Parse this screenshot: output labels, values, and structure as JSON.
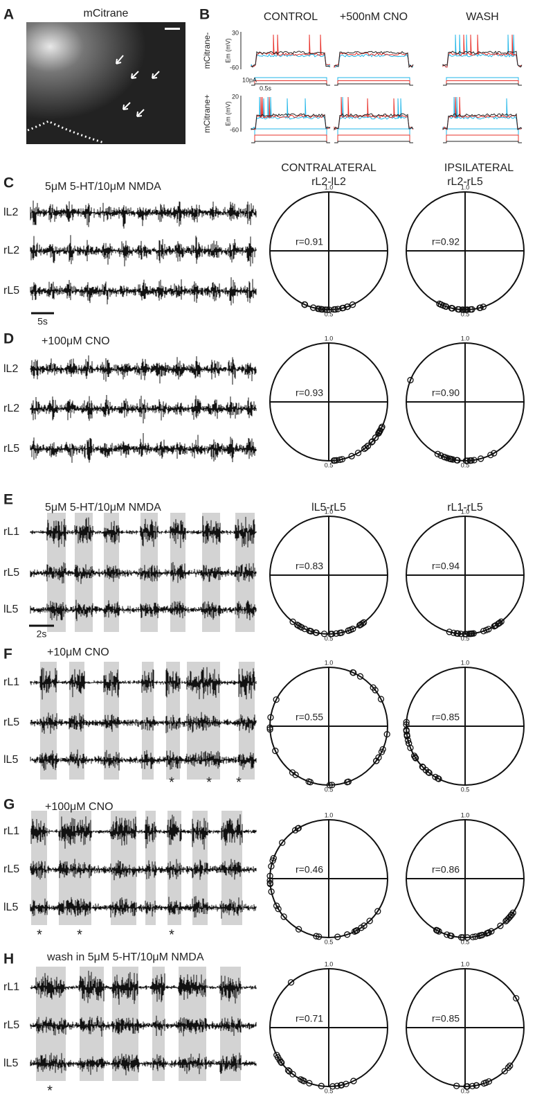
{
  "panel_a": {
    "letter": "A",
    "title": "mCitrane"
  },
  "panel_b": {
    "letter": "B",
    "conditions": [
      "CONTROL",
      "+500nM CNO",
      "WASH"
    ],
    "rows": [
      {
        "label": "mCitrane-",
        "axis_label": "Em (mV)",
        "top_tick": "30",
        "bottom_tick": "-60"
      },
      {
        "label": "mCitrane+",
        "axis_label": "Em (mV)",
        "top_tick": "20",
        "bottom_tick": "-60"
      }
    ],
    "current_scale": "10pA",
    "time_scale": "0.5s"
  },
  "polar_ticks": {
    "top": "1.0",
    "bottom": "0.5"
  },
  "sections": [
    {
      "letter": "C",
      "condition": "5μM 5-HT/10μM NMDA",
      "traces": [
        "lL2",
        "rL2",
        "rL5"
      ],
      "time_scale": "5s",
      "polar": [
        {
          "heading": [
            "CONTRALATERAL",
            "rL2-lL2"
          ],
          "r": "r=0.91"
        },
        {
          "heading": [
            "IPSILATERAL",
            "rL2-rL5"
          ],
          "r": "r=0.92"
        }
      ]
    },
    {
      "letter": "D",
      "condition": "+100μM CNO",
      "traces": [
        "lL2",
        "rL2",
        "rL5"
      ],
      "polar": [
        {
          "r": "r=0.93"
        },
        {
          "r": "r=0.90"
        }
      ]
    },
    {
      "letter": "E",
      "condition": "5μM 5-HT/10μM NMDA",
      "traces": [
        "rL1",
        "rL5",
        "lL5"
      ],
      "time_scale": "2s",
      "polar": [
        {
          "heading": [
            "lL5-rL5"
          ],
          "r": "r=0.83"
        },
        {
          "heading": [
            "rL1-rL5"
          ],
          "r": "r=0.94"
        }
      ]
    },
    {
      "letter": "F",
      "condition": "+10μM CNO",
      "traces": [
        "rL1",
        "rL5",
        "lL5"
      ],
      "asterisks": [
        "*",
        "*",
        "*"
      ],
      "polar": [
        {
          "r": "r=0.55"
        },
        {
          "r": "r=0.85"
        }
      ]
    },
    {
      "letter": "G",
      "condition": "+100μM CNO",
      "traces": [
        "rL1",
        "rL5",
        "lL5"
      ],
      "asterisks": [
        "*",
        "*",
        "*"
      ],
      "polar": [
        {
          "r": "r=0.46"
        },
        {
          "r": "r=0.86"
        }
      ]
    },
    {
      "letter": "H",
      "condition": "wash in 5μM 5-HT/10μM NMDA",
      "traces": [
        "rL1",
        "rL5",
        "lL5"
      ],
      "asterisks": [
        "*"
      ],
      "polar": [
        {
          "r": "r=0.71"
        },
        {
          "r": "r=0.85"
        }
      ]
    }
  ]
}
